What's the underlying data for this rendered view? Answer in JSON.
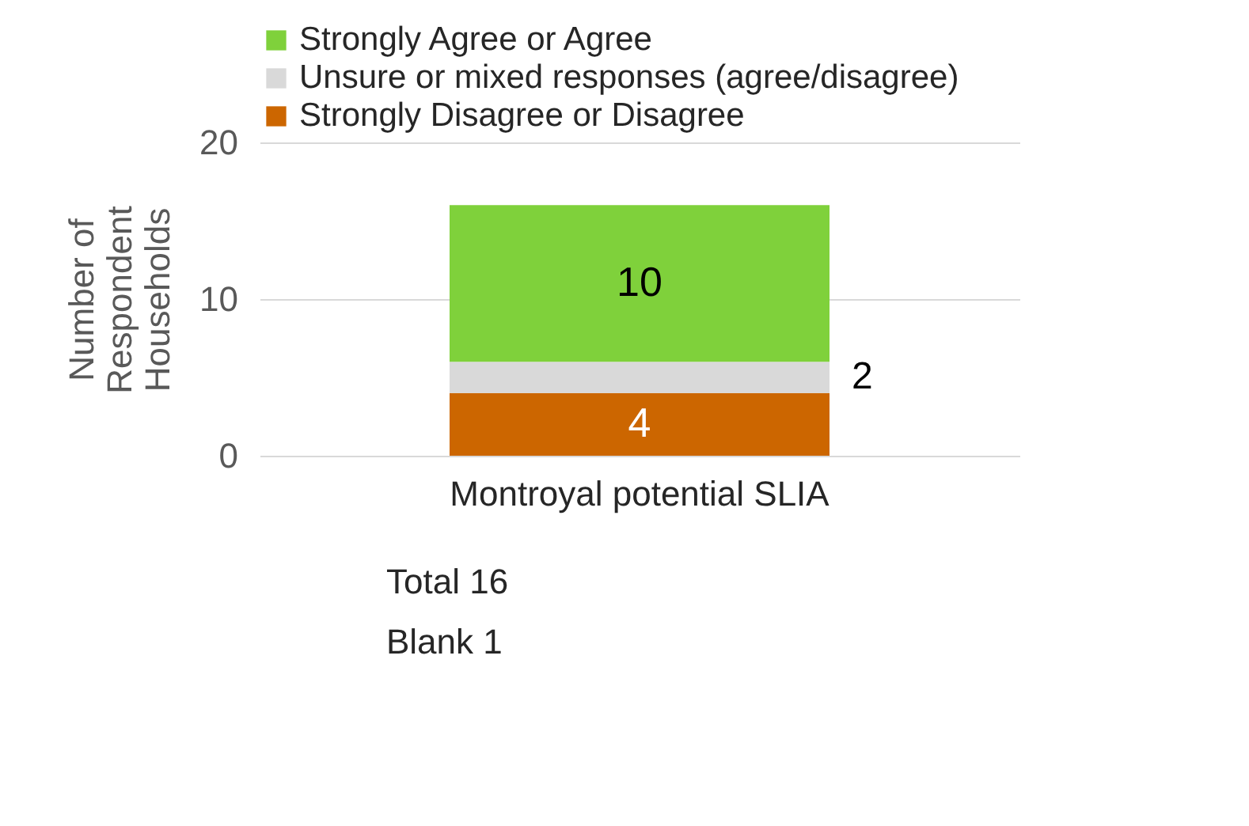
{
  "chart_data": {
    "type": "bar",
    "stacked": true,
    "categories": [
      "Montroyal potential SLIA"
    ],
    "series": [
      {
        "name": "Strongly Disagree or Disagree",
        "color": "#cc6600",
        "values": [
          4
        ]
      },
      {
        "name": "Unsure or mixed responses (agree/disagree)",
        "color": "#d9d9d9",
        "values": [
          2
        ]
      },
      {
        "name": "Strongly Agree or Agree",
        "color": "#7fd13b",
        "values": [
          10
        ]
      }
    ],
    "ylabel": "Number of\nRespondent\nHouseholds",
    "ylim": [
      0,
      20
    ],
    "yticks": [
      0,
      10,
      20
    ],
    "grid": "y",
    "legend": "top",
    "data_labels": true,
    "annotations": [
      "Total      16",
      "Blank       1"
    ]
  }
}
